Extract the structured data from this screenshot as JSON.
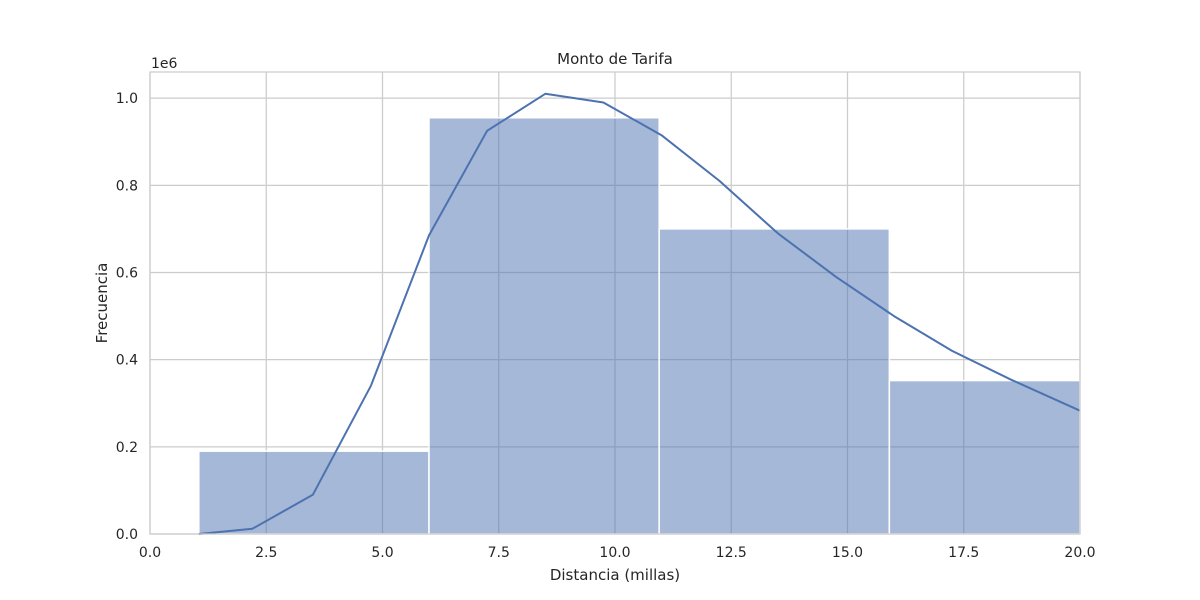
{
  "chart_data": {
    "type": "bar",
    "title": "Monto de Tarifa",
    "xlabel": "Distancia (millas)",
    "ylabel": "Frecuencia",
    "y_offset_label": "1e6",
    "xlim": [
      0,
      20
    ],
    "ylim": [
      0,
      1.06
    ],
    "x_ticks": [
      0.0,
      2.5,
      5.0,
      7.5,
      10.0,
      12.5,
      15.0,
      17.5,
      20.0
    ],
    "x_tick_labels": [
      "0.0",
      "2.5",
      "5.0",
      "7.5",
      "10.0",
      "12.5",
      "15.0",
      "17.5",
      "20.0"
    ],
    "y_ticks": [
      0.0,
      0.2,
      0.4,
      0.6,
      0.8,
      1.0
    ],
    "y_tick_labels": [
      "0.0",
      "0.2",
      "0.4",
      "0.6",
      "0.8",
      "1.0"
    ],
    "grid": true,
    "bins": [
      {
        "x0": 1.05,
        "x1": 6.0,
        "value": 0.19
      },
      {
        "x0": 6.0,
        "x1": 10.95,
        "value": 0.955
      },
      {
        "x0": 10.95,
        "x1": 15.9,
        "value": 0.7
      },
      {
        "x0": 15.9,
        "x1": 20.0,
        "value": 0.352
      }
    ],
    "kde": {
      "x": [
        1.05,
        2.2,
        3.5,
        4.75,
        6.0,
        7.25,
        8.5,
        9.75,
        11.0,
        12.25,
        13.5,
        14.75,
        16.0,
        17.25,
        18.5,
        20.0
      ],
      "y": [
        0.0,
        0.012,
        0.09,
        0.34,
        0.685,
        0.925,
        1.01,
        0.99,
        0.915,
        0.81,
        0.69,
        0.59,
        0.5,
        0.42,
        0.355,
        0.283
      ]
    },
    "colors": {
      "bar_fill": "#a5b7d7",
      "bar_edge": "#ffffff",
      "line": "#4c72b0",
      "grid": "#cccccc",
      "spine": "#cccccc"
    }
  }
}
